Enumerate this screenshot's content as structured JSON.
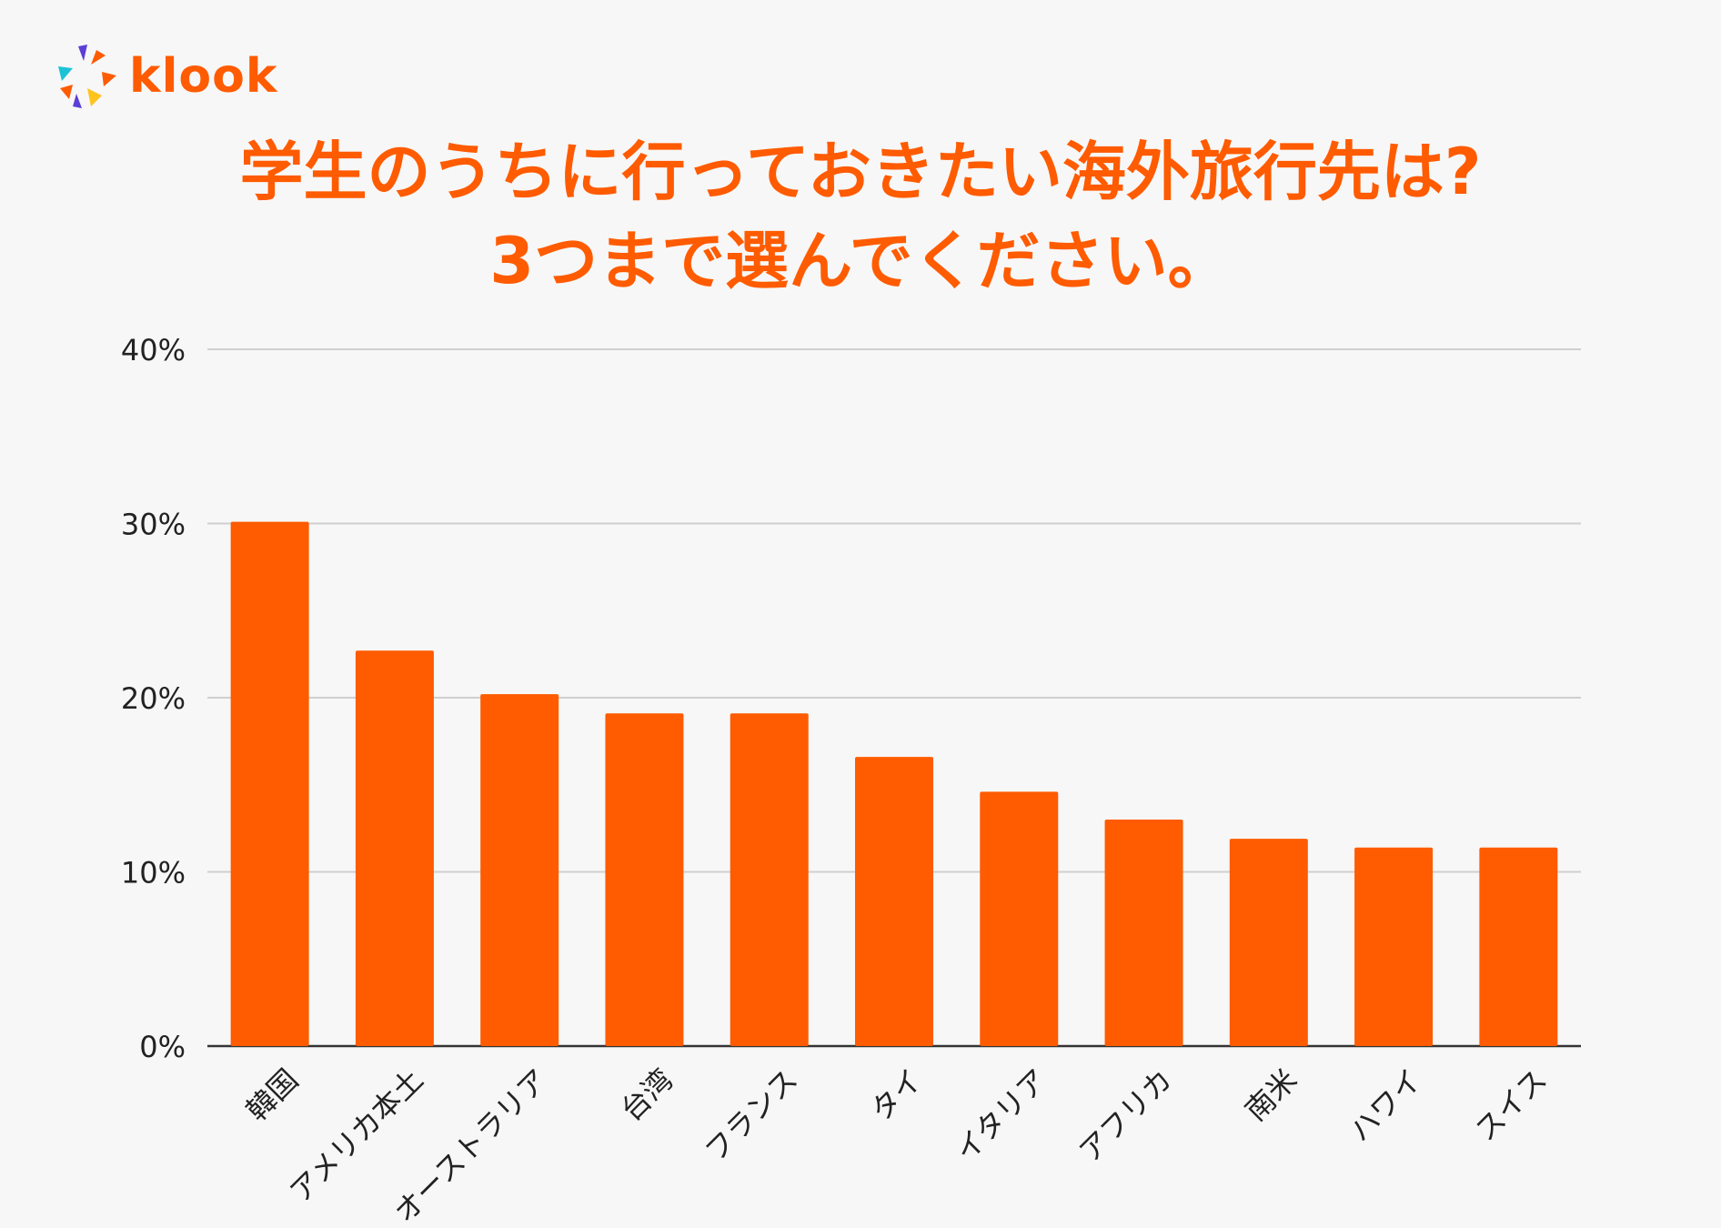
{
  "brand": {
    "name": "klook",
    "color": "#ff5b00"
  },
  "title_line1": "学生のうちに行っておきたい海外旅行先は?",
  "title_line2": "3つまで選んでください。",
  "chart_data": {
    "type": "bar",
    "categories": [
      "韓国",
      "アメリカ本土",
      "オーストラリア",
      "台湾",
      "フランス",
      "タイ",
      "イタリア",
      "アフリカ",
      "南米",
      "ハワイ",
      "スイス"
    ],
    "values": [
      30.1,
      22.7,
      20.2,
      19.1,
      19.1,
      16.6,
      14.6,
      13.0,
      11.9,
      11.4,
      11.4
    ],
    "ylim": [
      0,
      40
    ],
    "yticks": [
      "0%",
      "10%",
      "20%",
      "30%",
      "40%"
    ],
    "ytick_values": [
      0,
      10,
      20,
      30,
      40
    ],
    "grid": true,
    "bar_color": "#ff5b00"
  }
}
